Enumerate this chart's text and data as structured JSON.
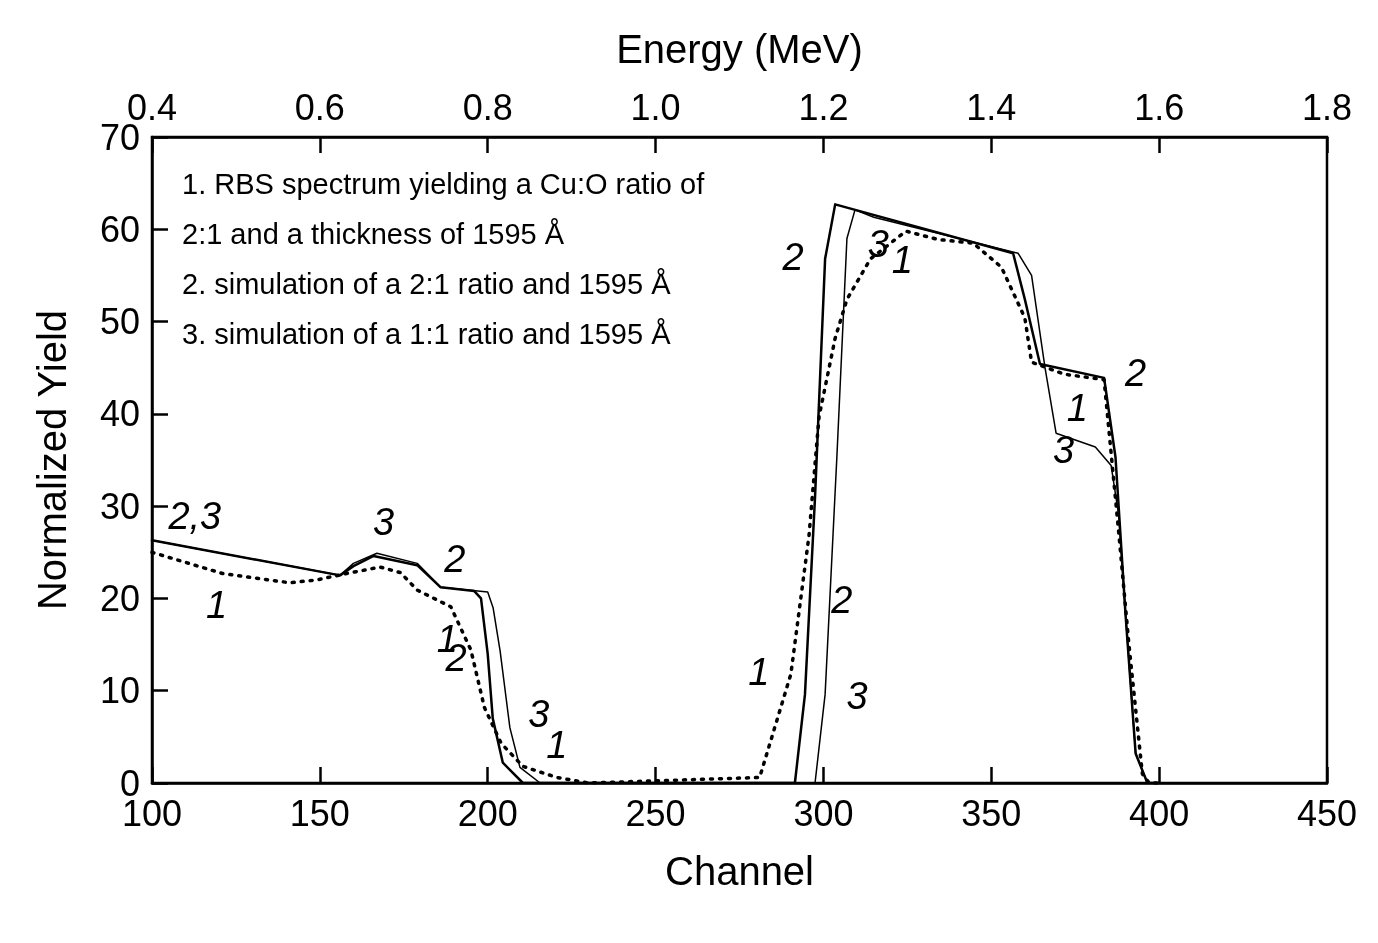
{
  "chart_data": {
    "type": "line",
    "xlabel": "Channel",
    "ylabel": "Normalized Yield",
    "x2label": "Energy (MeV)",
    "xlim": [
      100,
      450
    ],
    "xticks": [
      100,
      150,
      200,
      250,
      300,
      350,
      400,
      450
    ],
    "x2lim": [
      0.4,
      1.8
    ],
    "x2ticks": [
      0.4,
      0.6,
      0.8,
      {
        "value": 1,
        "label": "1.0"
      },
      1.2,
      1.4,
      1.6,
      1.8
    ],
    "ylim": [
      0,
      70
    ],
    "yticks": [
      0,
      10,
      20,
      30,
      40,
      50,
      60,
      70
    ],
    "grid": false,
    "marker": "none",
    "series": [
      {
        "color": "#000000",
        "line_style": "dotted",
        "x": [
          100,
          121,
          141,
          149,
          158,
          168,
          174,
          179,
          189,
          195,
          199,
          204,
          210.5,
          220.6,
          230,
          281,
          290.3,
          295.7,
          298.7,
          303.5,
          307,
          314,
          324.6,
          334,
          344.6,
          353,
          360,
          362,
          371.7,
          383.6,
          388,
          391,
          395,
          397,
          400
        ],
        "values": [
          25,
          22.7,
          21.7,
          22,
          22.7,
          23.4,
          22.8,
          20.9,
          19.1,
          14.4,
          8.2,
          4.3,
          1.8,
          0.6,
          0,
          0.6,
          11.8,
          26.8,
          39.7,
          48.2,
          52.4,
          56.8,
          59.8,
          58.9,
          58.5,
          55.9,
          50.4,
          45.6,
          44.3,
          43.7,
          27,
          15,
          1,
          0,
          0
        ]
      },
      {
        "color": "#000000",
        "line_style": "solid",
        "x": [
          100,
          156,
          160,
          166,
          179,
          186,
          196,
          198,
          200,
          201.5,
          204.5,
          210.5,
          215,
          291.5,
          294.5,
          297.5,
          300.5,
          303.5,
          356.5,
          360,
          364.5,
          383.6,
          387,
          390,
          393,
          396.5,
          400
        ],
        "values": [
          26.3,
          22.5,
          23.5,
          24.6,
          23.6,
          21.2,
          20.8,
          20,
          14,
          7,
          2.2,
          0,
          0,
          0,
          9.6,
          31,
          56.8,
          62.7,
          57.4,
          52.4,
          45.4,
          43.9,
          35.3,
          18.2,
          3.2,
          0,
          0
        ]
      },
      {
        "color": "#000000",
        "line_style": "solid",
        "x": [
          100,
          156,
          160,
          167,
          179,
          186,
          200,
          201.6,
          203.7,
          206.6,
          209.6,
          215.6,
          297.5,
          300.5,
          304,
          307,
          309.4,
          315,
          358,
          362,
          366,
          369.3,
          381,
          385.7,
          388,
          390,
          393,
          396.5,
          400
        ],
        "values": [
          26.3,
          22.5,
          23.8,
          24.9,
          23.8,
          21.2,
          20.7,
          19,
          14.3,
          6,
          1.7,
          0,
          0,
          9.6,
          35.3,
          59,
          62.1,
          61.3,
          57.4,
          55,
          45,
          37.9,
          36.4,
          34.4,
          28.9,
          18.2,
          3.2,
          0,
          0
        ]
      }
    ],
    "annotations": [
      "1. RBS spectrum yielding a Cu:O ratio of 2:1 and a thickness of 1595 Å",
      "2. simulation of a 2:1 ratio and 1595 Å",
      "3. simulation of a 1:1 ratio and 1595 Å",
      {
        "text": "2,3",
        "x": 110,
        "y": 25.6
      },
      {
        "text": "1",
        "x": 121,
        "y": 22.7
      },
      {
        "text": "3",
        "x": 167,
        "y": 24.9
      },
      {
        "text": "2",
        "x": 186,
        "y": 21.2
      },
      {
        "text": "1",
        "x": 189,
        "y": 19.1
      },
      {
        "text": "2",
        "x": 200,
        "y": 14
      },
      {
        "text": "3",
        "x": 206.6,
        "y": 6
      },
      {
        "text": "1",
        "x": 220.6,
        "y": 0.6
      },
      {
        "text": "2",
        "x": 300.5,
        "y": 56.8
      },
      {
        "text": "3",
        "x": 307,
        "y": 59
      },
      {
        "text": "1",
        "x": 314,
        "y": 56.8
      },
      {
        "text": "2",
        "x": 383.6,
        "y": 43.9
      },
      {
        "text": "1",
        "x": 377.6,
        "y": 44
      },
      {
        "text": "3",
        "x": 381,
        "y": 36.4
      },
      {
        "text": "1",
        "x": 290.3,
        "y": 11.8
      },
      {
        "text": "2",
        "x": 296,
        "y": 20.3
      },
      {
        "text": "3",
        "x": 300.5,
        "y": 9.6
      }
    ]
  }
}
